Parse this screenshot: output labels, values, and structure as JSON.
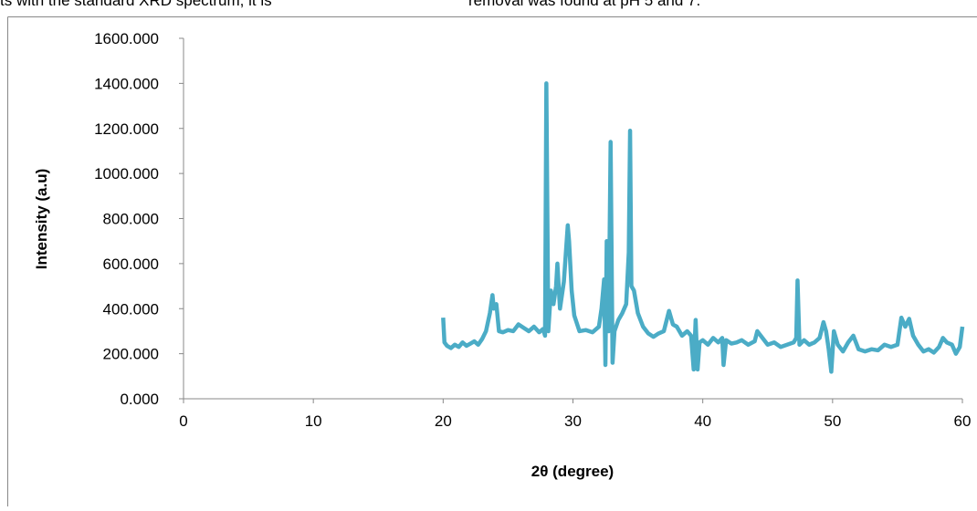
{
  "page_text": [
    "ts  with  the  standard  XRD  spectrum,  it  is",
    "removal was found at pH 5 and 7."
  ],
  "chart_data": {
    "type": "line",
    "x_label": "2θ (degree)",
    "y_label": "Intensity (a.u)",
    "xlim": [
      0,
      60
    ],
    "xticks": [
      0,
      10,
      20,
      30,
      40,
      50,
      60
    ],
    "ylim": [
      0,
      1600
    ],
    "yticks": [
      {
        "value": 0,
        "label": "0.000"
      },
      {
        "value": 200,
        "label": "200.000"
      },
      {
        "value": 400,
        "label": "400.000"
      },
      {
        "value": 600,
        "label": "600.000"
      },
      {
        "value": 800,
        "label": "800.000"
      },
      {
        "value": 1000,
        "label": "1000.000"
      },
      {
        "value": 1200,
        "label": "1200.000"
      },
      {
        "value": 1400,
        "label": "1400.000"
      },
      {
        "value": 1600,
        "label": "1600.000"
      }
    ],
    "grid": false,
    "series": [
      {
        "color": "#4bacc6",
        "x": [
          20,
          20.1,
          20.3,
          20.6,
          20.9,
          21.2,
          21.5,
          21.8,
          22.1,
          22.4,
          22.7,
          23,
          23.3,
          23.6,
          23.8,
          23.9,
          24.1,
          24.3,
          24.6,
          25,
          25.4,
          25.8,
          26.2,
          26.6,
          27,
          27.4,
          27.7,
          27.85,
          27.95,
          28.1,
          28.3,
          28.5,
          28.7,
          28.8,
          29,
          29.3,
          29.6,
          29.7,
          29.9,
          30.1,
          30.5,
          31,
          31.5,
          32,
          32.2,
          32.4,
          32.5,
          32.6,
          32.75,
          32.9,
          33.05,
          33.2,
          33.5,
          33.8,
          34.1,
          34.3,
          34.4,
          34.5,
          34.7,
          35,
          35.4,
          35.8,
          36.2,
          36.6,
          37,
          37.4,
          37.7,
          38,
          38.4,
          38.8,
          39.1,
          39.3,
          39.45,
          39.6,
          39.75,
          40,
          40.4,
          40.8,
          41.2,
          41.5,
          41.6,
          41.8,
          42.2,
          42.6,
          43,
          43.5,
          44,
          44.2,
          44.6,
          45,
          45.5,
          46,
          46.5,
          47,
          47.2,
          47.3,
          47.45,
          47.8,
          48.2,
          48.6,
          49,
          49.3,
          49.5,
          49.7,
          49.9,
          50.1,
          50.4,
          50.8,
          51.2,
          51.6,
          52,
          52.5,
          53,
          53.5,
          54,
          54.5,
          55,
          55.3,
          55.6,
          55.9,
          56.2,
          56.6,
          57,
          57.4,
          57.8,
          58.2,
          58.5,
          58.8,
          59.2,
          59.5,
          59.8,
          60
        ],
        "values": [
          360,
          250,
          235,
          225,
          240,
          230,
          250,
          235,
          245,
          255,
          240,
          265,
          300,
          380,
          460,
          400,
          420,
          300,
          295,
          305,
          300,
          330,
          315,
          300,
          320,
          295,
          310,
          280,
          1400,
          300,
          480,
          420,
          500,
          600,
          400,
          520,
          770,
          700,
          480,
          370,
          300,
          305,
          295,
          320,
          400,
          530,
          150,
          700,
          300,
          1140,
          160,
          300,
          350,
          380,
          420,
          650,
          1190,
          500,
          480,
          380,
          320,
          290,
          275,
          290,
          300,
          390,
          330,
          320,
          280,
          300,
          280,
          130,
          350,
          130,
          250,
          260,
          240,
          270,
          250,
          270,
          150,
          260,
          245,
          250,
          260,
          240,
          255,
          300,
          270,
          240,
          250,
          230,
          240,
          250,
          270,
          525,
          240,
          260,
          240,
          250,
          270,
          340,
          300,
          220,
          120,
          300,
          240,
          210,
          250,
          280,
          220,
          210,
          220,
          215,
          240,
          230,
          240,
          360,
          320,
          355,
          280,
          240,
          210,
          220,
          205,
          230,
          270,
          250,
          240,
          200,
          230,
          320
        ]
      }
    ]
  }
}
